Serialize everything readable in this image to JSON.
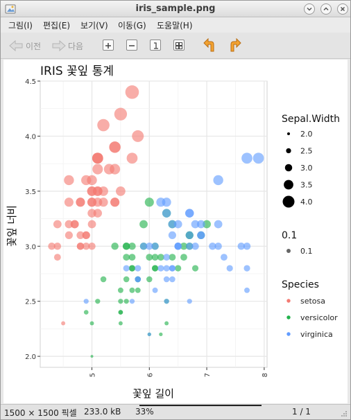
{
  "window": {
    "title": "iris_sample.png"
  },
  "menu": [
    "그림(I)",
    "편집(E)",
    "보기(V)",
    "이동(G)",
    "도움말(H)"
  ],
  "toolbar": {
    "prev_label": "이전",
    "next_label": "다음"
  },
  "status": {
    "dimensions": "1500 × 1500 픽셀",
    "filesize": "233.0 kB",
    "zoom": "33%",
    "page": "1 / 1"
  },
  "chart_data": {
    "type": "scatter",
    "title": "IRIS 꽃잎 통계",
    "xlabel": "꽃잎 길이",
    "ylabel": "꽃잎 너비",
    "xlim": [
      4.1,
      8.05
    ],
    "ylim": [
      1.9,
      4.5
    ],
    "xticks": [
      "5",
      "6",
      "7",
      "8"
    ],
    "yticks": [
      "2.0",
      "2.5",
      "3.0",
      "3.5",
      "4.0",
      "4.5"
    ],
    "grid": true,
    "size_legend": {
      "title": "Sepal.Width",
      "labels": [
        "2.0",
        "2.5",
        "3.0",
        "3.5",
        "4.0"
      ],
      "values": [
        2.0,
        2.5,
        3.0,
        3.5,
        4.0
      ]
    },
    "alpha_legend": {
      "title": "0.1",
      "labels": [
        "0.1"
      ]
    },
    "legend": {
      "title": "Species",
      "position": "right"
    },
    "series": [
      {
        "name": "setosa",
        "color": "#f37b73",
        "x": [
          5.1,
          4.9,
          4.7,
          4.6,
          5.0,
          5.4,
          4.6,
          5.0,
          4.4,
          4.9,
          5.4,
          4.8,
          4.8,
          4.3,
          5.8,
          5.7,
          5.4,
          5.1,
          5.7,
          5.1,
          5.4,
          5.1,
          4.6,
          5.1,
          4.8,
          5.0,
          5.0,
          5.2,
          5.2,
          4.7,
          4.8,
          5.4,
          5.2,
          5.5,
          4.9,
          5.0,
          5.5,
          4.9,
          4.4,
          5.1,
          5.0,
          4.5,
          4.4,
          5.0,
          5.1,
          4.8,
          5.1,
          4.6,
          5.3,
          5.0
        ],
        "y": [
          3.5,
          3.0,
          3.2,
          3.1,
          3.6,
          3.9,
          3.4,
          3.4,
          2.9,
          3.1,
          3.7,
          3.4,
          3.0,
          3.0,
          4.0,
          4.4,
          3.9,
          3.5,
          3.8,
          3.8,
          3.4,
          3.7,
          3.6,
          3.3,
          3.4,
          3.0,
          3.4,
          3.5,
          3.4,
          3.2,
          3.1,
          3.4,
          4.1,
          4.2,
          3.1,
          3.2,
          3.5,
          3.6,
          3.0,
          3.4,
          3.5,
          2.3,
          3.2,
          3.5,
          3.8,
          3.0,
          3.8,
          3.2,
          3.7,
          3.3
        ]
      },
      {
        "name": "versicolor",
        "color": "#22b24c",
        "x": [
          7.0,
          6.4,
          6.9,
          5.5,
          6.5,
          5.7,
          6.3,
          4.9,
          6.6,
          5.2,
          5.0,
          5.9,
          6.0,
          6.1,
          5.6,
          6.7,
          5.6,
          5.8,
          6.2,
          5.6,
          5.9,
          6.1,
          6.3,
          6.1,
          6.4,
          6.6,
          6.8,
          6.7,
          6.0,
          5.7,
          5.5,
          5.5,
          5.8,
          6.0,
          5.4,
          6.0,
          6.7,
          6.3,
          5.6,
          5.5,
          5.5,
          6.1,
          5.8,
          5.0,
          5.6,
          5.7,
          5.7,
          6.2,
          5.1,
          5.7
        ],
        "y": [
          3.2,
          3.2,
          3.1,
          2.3,
          2.8,
          2.8,
          3.3,
          2.4,
          2.9,
          2.7,
          2.0,
          3.0,
          2.2,
          2.9,
          2.9,
          3.1,
          3.0,
          2.7,
          2.2,
          2.5,
          3.2,
          2.8,
          2.5,
          2.8,
          2.9,
          3.0,
          2.8,
          3.0,
          2.9,
          2.6,
          2.4,
          2.4,
          2.7,
          2.7,
          3.0,
          3.4,
          3.1,
          2.3,
          3.0,
          2.5,
          2.6,
          3.0,
          2.6,
          2.3,
          2.7,
          3.0,
          2.9,
          2.9,
          2.5,
          2.8
        ]
      },
      {
        "name": "virginica",
        "color": "#619cff",
        "x": [
          6.3,
          5.8,
          7.1,
          6.3,
          6.5,
          7.6,
          4.9,
          7.3,
          6.7,
          7.2,
          6.5,
          6.4,
          6.8,
          5.7,
          5.8,
          6.4,
          6.5,
          7.7,
          7.7,
          6.0,
          6.9,
          5.6,
          7.7,
          6.3,
          6.7,
          7.2,
          6.2,
          6.1,
          6.4,
          7.2,
          7.4,
          7.9,
          6.4,
          6.3,
          6.1,
          7.7,
          6.3,
          6.4,
          6.0,
          6.9,
          6.7,
          6.9,
          5.8,
          6.8,
          6.7,
          6.7,
          6.3,
          6.5,
          6.2,
          5.9
        ],
        "y": [
          3.3,
          2.7,
          3.0,
          2.9,
          3.0,
          3.0,
          2.5,
          2.9,
          2.5,
          3.6,
          3.2,
          2.7,
          3.0,
          2.5,
          2.8,
          3.2,
          3.0,
          3.8,
          2.6,
          2.2,
          3.2,
          2.8,
          2.8,
          2.7,
          3.3,
          3.2,
          2.8,
          3.0,
          2.8,
          3.0,
          2.8,
          3.8,
          2.8,
          2.8,
          2.6,
          3.0,
          3.4,
          3.1,
          3.0,
          3.1,
          3.1,
          3.1,
          2.7,
          3.2,
          3.3,
          3.0,
          2.5,
          3.0,
          3.4,
          3.0
        ]
      }
    ]
  }
}
